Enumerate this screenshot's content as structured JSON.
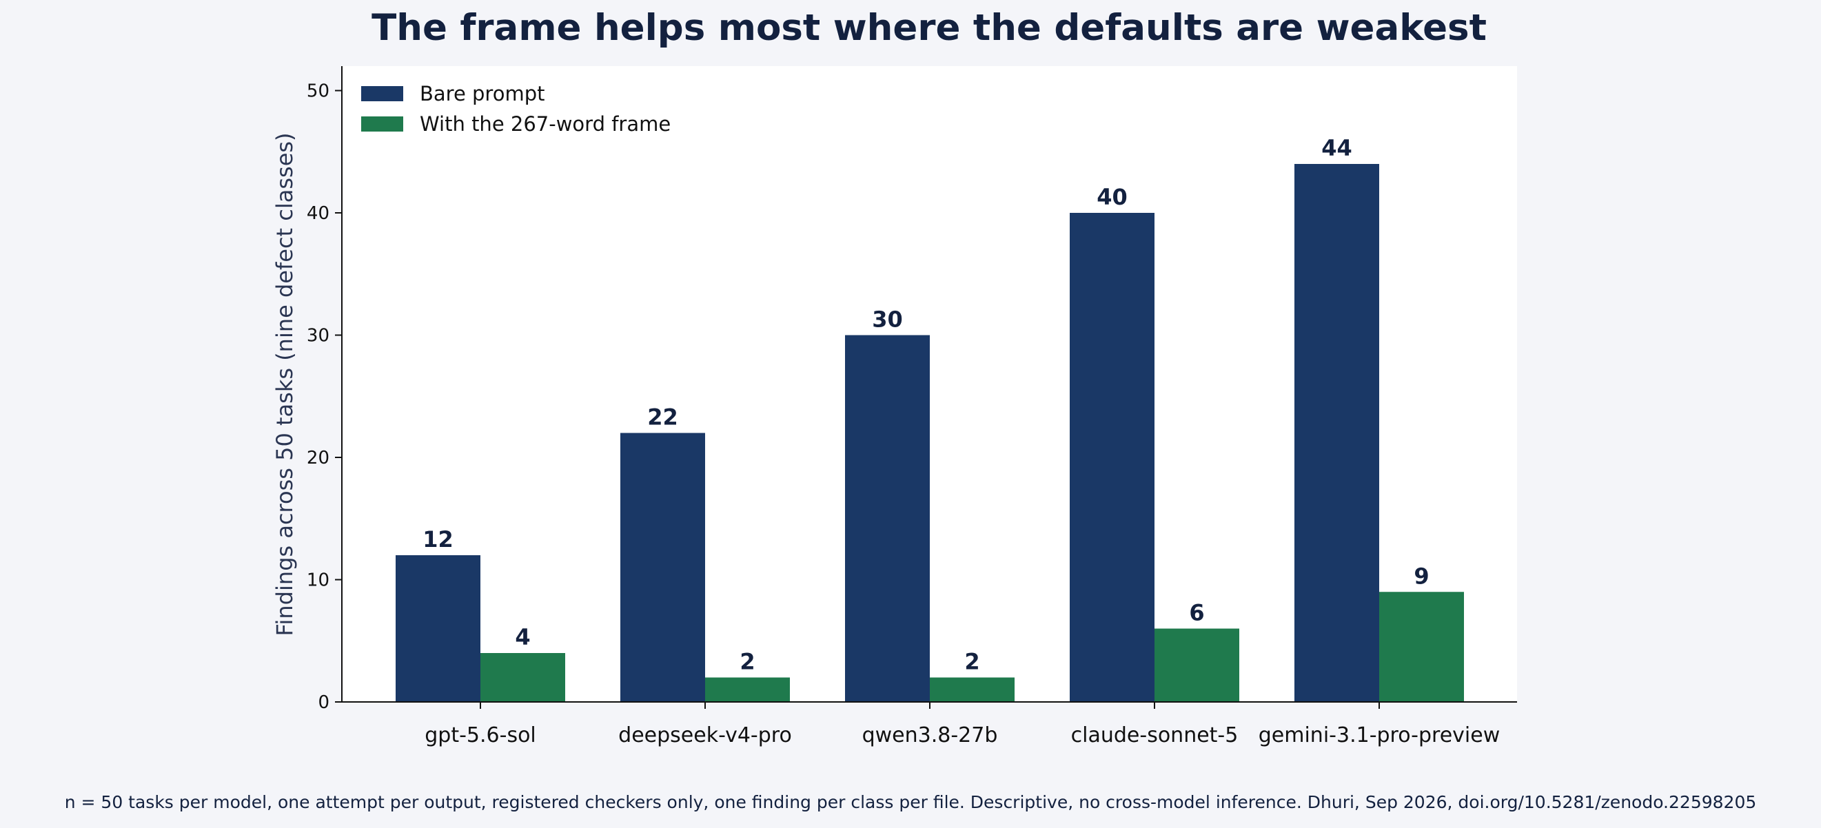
{
  "chart_data": {
    "type": "bar",
    "title": "The frame helps most where the defaults are weakest",
    "ylabel": "Findings across 50 tasks (nine defect classes)",
    "xlabel": "",
    "categories": [
      "gpt-5.6-sol",
      "deepseek-v4-pro",
      "qwen3.8-27b",
      "claude-sonnet-5",
      "gemini-3.1-pro-preview"
    ],
    "series": [
      {
        "name": "Bare prompt",
        "color": "#1a3866",
        "values": [
          12,
          22,
          30,
          40,
          44
        ]
      },
      {
        "name": "With the 267-word frame",
        "color": "#1f7a4d",
        "values": [
          4,
          2,
          2,
          6,
          9
        ]
      }
    ],
    "ylim": [
      0,
      52
    ],
    "yticks": [
      0,
      10,
      20,
      30,
      40,
      50
    ],
    "grid": false,
    "legend": "top-left"
  },
  "footnote": "n = 50 tasks per model, one attempt per output, registered checkers only, one finding per class per file. Descriptive, no cross-model inference.  Dhuri, Sep 2026, doi.org/10.5281/zenodo.22598205"
}
